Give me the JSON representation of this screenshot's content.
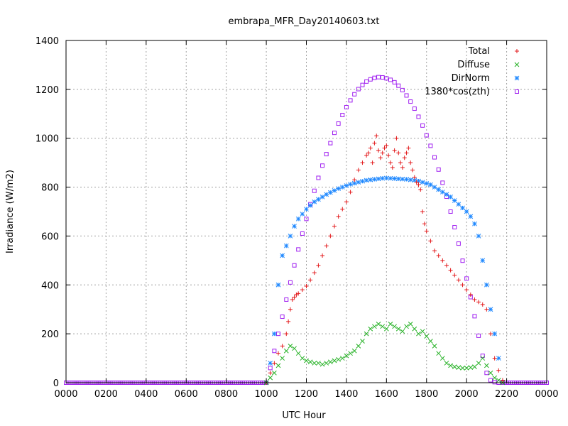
{
  "chart_data": {
    "type": "scatter",
    "title": "embrapa_MFR_Day20140603.txt",
    "xlabel": "UTC Hour",
    "ylabel": "Irradiance (W/m2)",
    "xlim": [
      0,
      2400
    ],
    "ylim": [
      0,
      1400
    ],
    "x_tick_labels": [
      "0000",
      "0200",
      "0400",
      "0600",
      "0800",
      "1000",
      "1200",
      "1400",
      "1600",
      "1800",
      "2000",
      "2200",
      "0000"
    ],
    "y_ticks": [
      0,
      200,
      400,
      600,
      800,
      1000,
      1200,
      1400
    ],
    "grid": true,
    "legend_position": "top-right",
    "colors": {
      "Total": "#e31a1c",
      "Diffuse": "#22b022",
      "DirNorm": "#1e88ff",
      "1380*cos(zth)": "#a020f0",
      "grid": "#a0a0a0"
    },
    "series": [
      {
        "name": "Total",
        "marker": "plus",
        "x": [
          1000,
          1020,
          1040,
          1060,
          1080,
          1100,
          1110,
          1120,
          1130,
          1140,
          1150,
          1160,
          1180,
          1200,
          1220,
          1240,
          1260,
          1280,
          1300,
          1320,
          1340,
          1360,
          1380,
          1400,
          1420,
          1440,
          1460,
          1480,
          1500,
          1510,
          1520,
          1530,
          1540,
          1550,
          1560,
          1570,
          1580,
          1590,
          1600,
          1610,
          1620,
          1630,
          1640,
          1650,
          1660,
          1670,
          1680,
          1690,
          1700,
          1710,
          1720,
          1730,
          1740,
          1750,
          1760,
          1770,
          1780,
          1790,
          1800,
          1820,
          1840,
          1860,
          1880,
          1900,
          1920,
          1940,
          1960,
          1980,
          2000,
          2020,
          2040,
          2060,
          2080,
          2100,
          2120,
          2140,
          2160,
          2180
        ],
        "values": [
          0,
          40,
          80,
          120,
          150,
          200,
          250,
          300,
          340,
          350,
          360,
          365,
          380,
          395,
          420,
          450,
          480,
          520,
          560,
          600,
          640,
          680,
          710,
          740,
          780,
          830,
          870,
          900,
          930,
          940,
          960,
          900,
          980,
          1010,
          950,
          920,
          940,
          960,
          970,
          930,
          900,
          880,
          950,
          1000,
          940,
          900,
          880,
          920,
          940,
          960,
          900,
          870,
          840,
          820,
          810,
          790,
          700,
          650,
          620,
          580,
          540,
          520,
          500,
          480,
          460,
          440,
          420,
          400,
          380,
          360,
          340,
          330,
          320,
          300,
          200,
          100,
          50,
          10
        ]
      },
      {
        "name": "Diffuse",
        "marker": "x",
        "x": [
          1000,
          1020,
          1040,
          1060,
          1080,
          1100,
          1120,
          1140,
          1160,
          1180,
          1200,
          1220,
          1240,
          1260,
          1280,
          1300,
          1320,
          1340,
          1360,
          1380,
          1400,
          1420,
          1440,
          1460,
          1480,
          1500,
          1520,
          1540,
          1560,
          1580,
          1600,
          1620,
          1640,
          1660,
          1680,
          1700,
          1720,
          1740,
          1760,
          1780,
          1800,
          1820,
          1840,
          1860,
          1880,
          1900,
          1920,
          1940,
          1960,
          1980,
          2000,
          2020,
          2040,
          2060,
          2080,
          2100,
          2120,
          2140,
          2160,
          2180
        ],
        "values": [
          0,
          20,
          40,
          70,
          100,
          130,
          150,
          140,
          120,
          100,
          90,
          85,
          80,
          80,
          75,
          80,
          85,
          90,
          95,
          100,
          110,
          120,
          130,
          150,
          170,
          200,
          220,
          230,
          240,
          230,
          220,
          240,
          230,
          220,
          210,
          230,
          240,
          220,
          200,
          210,
          190,
          170,
          150,
          120,
          100,
          80,
          70,
          65,
          62,
          60,
          60,
          62,
          65,
          80,
          100,
          70,
          40,
          20,
          10,
          0
        ]
      },
      {
        "name": "DirNorm",
        "marker": "star",
        "x": [
          1000,
          1020,
          1040,
          1060,
          1080,
          1100,
          1120,
          1140,
          1160,
          1180,
          1200,
          1220,
          1240,
          1260,
          1280,
          1300,
          1320,
          1340,
          1360,
          1380,
          1400,
          1420,
          1440,
          1460,
          1480,
          1500,
          1520,
          1540,
          1560,
          1580,
          1600,
          1620,
          1640,
          1660,
          1680,
          1700,
          1720,
          1740,
          1760,
          1780,
          1800,
          1820,
          1840,
          1860,
          1880,
          1900,
          1920,
          1940,
          1960,
          1980,
          2000,
          2020,
          2040,
          2060,
          2080,
          2100,
          2120,
          2140,
          2160
        ],
        "values": [
          0,
          80,
          200,
          400,
          520,
          560,
          600,
          640,
          670,
          690,
          710,
          725,
          740,
          750,
          760,
          770,
          778,
          786,
          794,
          800,
          806,
          812,
          816,
          820,
          824,
          828,
          830,
          832,
          834,
          836,
          837,
          836,
          835,
          834,
          833,
          832,
          830,
          828,
          825,
          820,
          815,
          810,
          800,
          790,
          780,
          770,
          760,
          745,
          730,
          715,
          700,
          680,
          650,
          600,
          500,
          400,
          300,
          200,
          100
        ]
      },
      {
        "name": "1380*cos(zth)",
        "marker": "square",
        "x": [
          1000,
          1020,
          1040,
          1060,
          1080,
          1100,
          1120,
          1140,
          1160,
          1180,
          1200,
          1220,
          1240,
          1260,
          1280,
          1300,
          1320,
          1340,
          1360,
          1380,
          1400,
          1420,
          1440,
          1460,
          1480,
          1500,
          1520,
          1540,
          1560,
          1580,
          1600,
          1620,
          1640,
          1660,
          1680,
          1700,
          1720,
          1740,
          1760,
          1780,
          1800,
          1820,
          1840,
          1860,
          1880,
          1900,
          1920,
          1940,
          1960,
          1980,
          2000,
          2020,
          2040,
          2060,
          2080,
          2100,
          2120,
          2140,
          2160,
          2180,
          2200
        ],
        "values": [
          0,
          60,
          130,
          200,
          270,
          340,
          410,
          480,
          545,
          610,
          670,
          730,
          785,
          838,
          888,
          935,
          980,
          1022,
          1060,
          1095,
          1127,
          1155,
          1180,
          1201,
          1218,
          1232,
          1241,
          1247,
          1250,
          1249,
          1245,
          1239,
          1229,
          1215,
          1197,
          1175,
          1150,
          1121,
          1088,
          1052,
          1012,
          969,
          922,
          872,
          818,
          761,
          700,
          636,
          569,
          499,
          426,
          350,
          272,
          192,
          110,
          40,
          10,
          2,
          0,
          0,
          0
        ]
      }
    ]
  }
}
